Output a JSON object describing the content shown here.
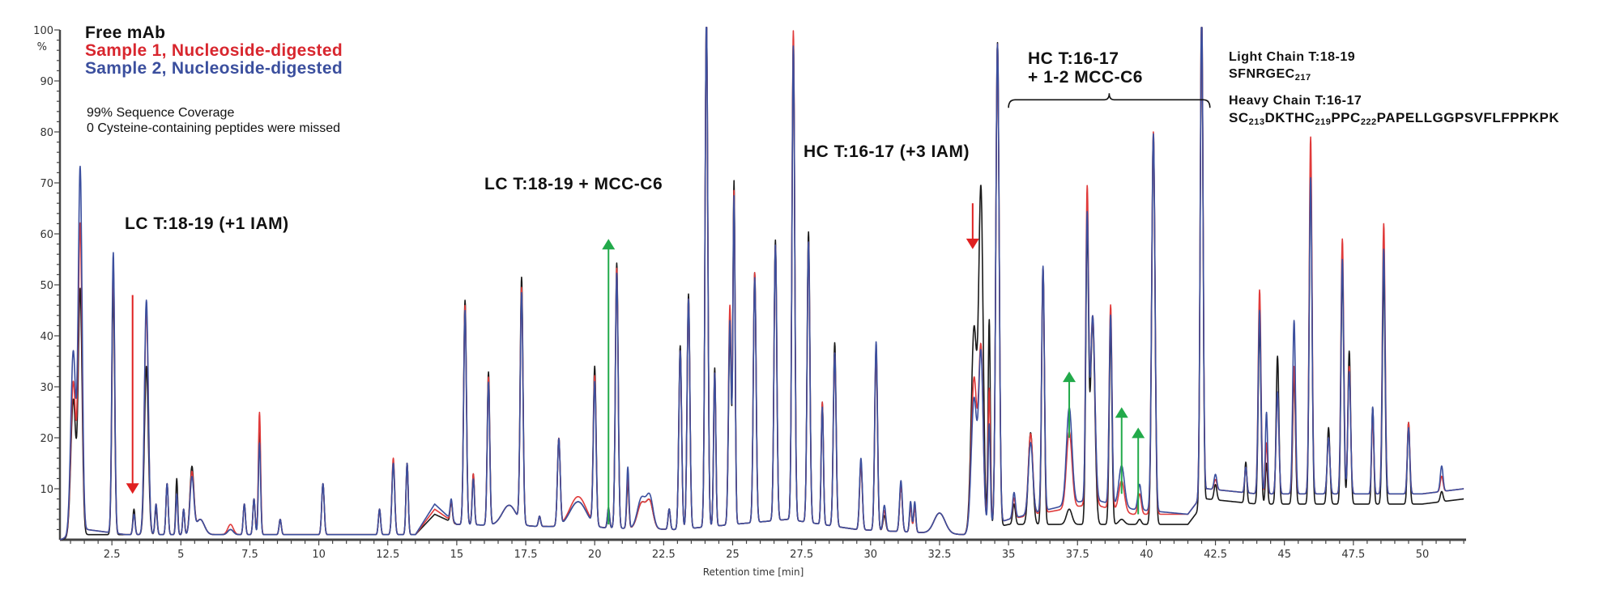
{
  "chart_data": {
    "type": "line",
    "xlabel": "Retention time [min]",
    "ylabel": "%",
    "xlim": [
      0.62,
      51.5
    ],
    "ylim": [
      0,
      100
    ],
    "xticks": [
      2.5,
      5,
      7.5,
      10,
      12.5,
      15,
      17.5,
      20,
      22.5,
      25,
      27.5,
      30,
      32.5,
      35,
      37.5,
      40,
      42.5,
      45,
      47.5,
      50
    ],
    "xtick_labels": [
      "2.5",
      "5",
      "7.5",
      "10",
      "12.5",
      "15",
      "17.5",
      "20",
      "22.5",
      "25",
      "27.5",
      "30",
      "32.5",
      "35",
      "37.5",
      "40",
      "42.5",
      "45",
      "47.5",
      "50"
    ],
    "yticks": [
      10,
      20,
      30,
      40,
      50,
      60,
      70,
      80,
      90,
      100
    ],
    "ytick_labels": [
      "10",
      "20",
      "30",
      "40",
      "50",
      "60",
      "70",
      "80",
      "90",
      "100"
    ],
    "grid": false,
    "legend": "top-left",
    "series": [
      {
        "name": "Free mAb",
        "color": "#1a1a1a"
      },
      {
        "name": "Sample 1, Nucleoside-digested",
        "color": "#e03a3a"
      },
      {
        "name": "Sample 2, Nucleoside-digested",
        "color": "#3b4f9e"
      }
    ],
    "peak_columns": [
      "retention_time_min",
      "free_mAb_pct",
      "sample1_pct",
      "sample2_pct",
      "width_min"
    ],
    "peaks": [
      [
        1.1,
        27,
        30,
        36,
        0.09
      ],
      [
        1.35,
        48,
        60,
        71,
        0.07
      ],
      [
        2.55,
        48,
        53,
        55,
        0.05
      ],
      [
        3.3,
        5,
        4,
        4,
        0.04
      ],
      [
        3.75,
        33,
        44,
        46,
        0.07
      ],
      [
        4.1,
        5,
        6,
        6,
        0.04
      ],
      [
        4.5,
        10,
        10,
        10,
        0.04
      ],
      [
        4.85,
        11,
        8,
        8,
        0.035
      ],
      [
        5.1,
        5,
        5,
        5,
        0.035
      ],
      [
        5.4,
        13,
        12,
        11,
        0.07
      ],
      [
        5.7,
        3,
        3,
        3,
        0.15
      ],
      [
        6.8,
        1,
        2,
        1,
        0.1
      ],
      [
        7.3,
        6,
        6,
        6,
        0.04
      ],
      [
        7.65,
        7,
        7,
        7,
        0.04
      ],
      [
        7.85,
        20,
        24,
        18,
        0.04
      ],
      [
        8.6,
        3,
        3,
        3,
        0.04
      ],
      [
        10.15,
        10,
        10,
        10,
        0.045
      ],
      [
        12.2,
        5,
        5,
        5,
        0.04
      ],
      [
        12.7,
        14,
        15,
        14,
        0.05
      ],
      [
        13.2,
        14,
        14,
        14,
        0.04
      ],
      [
        14.8,
        4,
        4,
        4,
        0.04
      ],
      [
        15.3,
        44,
        43,
        42,
        0.05
      ],
      [
        15.6,
        10,
        10,
        9,
        0.04
      ],
      [
        16.15,
        30,
        29,
        28,
        0.045
      ],
      [
        16.9,
        4,
        4,
        4,
        0.25
      ],
      [
        17.35,
        48,
        46,
        45,
        0.05
      ],
      [
        18.0,
        2,
        2,
        2,
        0.04
      ],
      [
        18.7,
        17,
        17,
        17,
        0.05
      ],
      [
        19.4,
        5,
        6,
        5,
        0.3
      ],
      [
        20.0,
        31,
        29,
        28,
        0.05
      ],
      [
        20.5,
        3,
        4,
        4,
        0.04
      ],
      [
        20.8,
        52,
        51,
        50,
        0.05
      ],
      [
        21.2,
        9,
        10,
        12,
        0.04
      ],
      [
        21.7,
        5,
        5,
        6,
        0.15
      ],
      [
        22.0,
        5,
        5,
        6,
        0.12
      ],
      [
        22.7,
        4,
        4,
        4,
        0.04
      ],
      [
        23.1,
        36,
        35,
        35,
        0.05
      ],
      [
        23.4,
        46,
        45,
        45,
        0.05
      ],
      [
        24.05,
        100,
        100,
        100,
        0.05
      ],
      [
        24.35,
        31,
        30,
        30,
        0.04
      ],
      [
        24.9,
        38,
        43,
        40,
        0.05
      ],
      [
        25.05,
        67,
        65,
        64,
        0.04
      ],
      [
        25.8,
        49,
        49,
        48,
        0.05
      ],
      [
        26.55,
        55,
        54,
        54,
        0.05
      ],
      [
        27.2,
        94,
        96,
        93,
        0.05
      ],
      [
        27.75,
        57,
        55,
        55,
        0.05
      ],
      [
        28.25,
        24,
        24,
        23,
        0.04
      ],
      [
        28.7,
        36,
        34,
        34,
        0.05
      ],
      [
        29.65,
        13,
        13,
        14,
        0.05
      ],
      [
        30.2,
        35,
        36,
        37,
        0.05
      ],
      [
        30.5,
        3,
        4,
        5,
        0.05
      ],
      [
        31.1,
        9,
        9,
        10,
        0.05
      ],
      [
        31.45,
        5,
        5,
        6,
        0.04
      ],
      [
        31.6,
        5,
        5,
        6,
        0.04
      ],
      [
        32.5,
        4,
        4,
        4,
        0.2
      ],
      [
        33.75,
        40,
        30,
        26,
        0.1
      ],
      [
        34.0,
        66,
        35,
        34,
        0.08
      ],
      [
        34.3,
        41,
        27,
        20,
        0.04
      ],
      [
        34.6,
        95,
        94,
        94,
        0.06
      ],
      [
        35.2,
        4,
        4,
        5,
        0.05
      ],
      [
        35.8,
        18,
        16,
        14,
        0.08
      ],
      [
        36.25,
        50,
        48,
        48,
        0.05
      ],
      [
        37.2,
        3,
        15,
        19,
        0.1
      ],
      [
        37.85,
        57,
        61,
        55,
        0.05
      ],
      [
        38.05,
        40,
        37,
        36,
        0.08
      ],
      [
        38.7,
        38,
        40,
        37,
        0.05
      ],
      [
        39.1,
        1,
        6,
        8,
        0.1
      ],
      [
        39.75,
        1,
        4,
        5,
        0.06
      ],
      [
        40.25,
        76,
        75,
        74,
        0.06
      ],
      [
        42.0,
        98,
        97,
        96,
        0.05
      ],
      [
        42.5,
        3,
        2,
        3,
        0.05
      ],
      [
        43.6,
        8,
        5,
        5,
        0.04
      ],
      [
        44.1,
        35,
        40,
        36,
        0.05
      ],
      [
        44.35,
        8,
        10,
        16,
        0.04
      ],
      [
        44.75,
        29,
        20,
        20,
        0.05
      ],
      [
        45.35,
        25,
        25,
        34,
        0.05
      ],
      [
        45.95,
        66,
        70,
        62,
        0.05
      ],
      [
        46.6,
        15,
        11,
        11,
        0.05
      ],
      [
        47.1,
        46,
        50,
        46,
        0.05
      ],
      [
        47.35,
        30,
        25,
        24,
        0.05
      ],
      [
        48.2,
        19,
        15,
        17,
        0.04
      ],
      [
        48.6,
        45,
        53,
        48,
        0.05
      ],
      [
        49.5,
        16,
        14,
        13,
        0.045
      ],
      [
        50.7,
        2,
        3,
        5,
        0.05
      ]
    ],
    "baseline_columns": [
      "retention_time_min",
      "free_mAb_pct",
      "sample1_pct",
      "sample2_pct"
    ],
    "baseline": [
      [
        0.62,
        0,
        0,
        0
      ],
      [
        1.6,
        1,
        2,
        2
      ],
      [
        3,
        1,
        1,
        1
      ],
      [
        10,
        1,
        1,
        1
      ],
      [
        13.5,
        1,
        1,
        1
      ],
      [
        14.2,
        5,
        6,
        7
      ],
      [
        15,
        3,
        3,
        3
      ],
      [
        23,
        2,
        2,
        2
      ],
      [
        27,
        4,
        4,
        4
      ],
      [
        29.5,
        2,
        2,
        2
      ],
      [
        33.4,
        1,
        1,
        1
      ],
      [
        35,
        3,
        4,
        4
      ],
      [
        38,
        3,
        7,
        8
      ],
      [
        39.5,
        3,
        5,
        6
      ],
      [
        41.5,
        3,
        5,
        5
      ],
      [
        42.2,
        8,
        10,
        10
      ],
      [
        44,
        7,
        9,
        9
      ],
      [
        46,
        7,
        9,
        9
      ],
      [
        50,
        7,
        9,
        9
      ],
      [
        51.5,
        8,
        10,
        10
      ]
    ]
  },
  "legend": {
    "free": "Free mAb",
    "s1": "Sample 1, Nucleoside-digested",
    "s2": "Sample 2, Nucleoside-digested"
  },
  "notes": {
    "coverage": "99% Sequence Coverage",
    "missed": "0 Cysteine-containing peptides were missed"
  },
  "annotations": {
    "lc_iam": "LC T:18-19 (+1 IAM)",
    "lc_mcc": "LC T:18-19 + MCC-C6",
    "hc_iam": "HC T:16-17 (+3 IAM)",
    "hc_mcc_1": "HC T:16-17",
    "hc_mcc_2": "+ 1-2 MCC-C6"
  },
  "sequences": {
    "light_title": "Light Chain T:18-19",
    "light_seq": [
      [
        "SFNRGEC",
        "217"
      ]
    ],
    "heavy_title": "Heavy Chain T:16-17",
    "heavy_seq": [
      [
        "SC",
        "213"
      ],
      [
        "DKTHC",
        "219"
      ],
      [
        "PPC",
        "222"
      ],
      [
        "PAPELLGGPSVFLFPPKPK",
        ""
      ]
    ]
  },
  "colors": {
    "free": "#1a1a1a",
    "sample1": "#e03a3a",
    "sample2": "#3b4f9e",
    "up_arrow": "#22aa4a",
    "down_arrow": "#e02020"
  }
}
